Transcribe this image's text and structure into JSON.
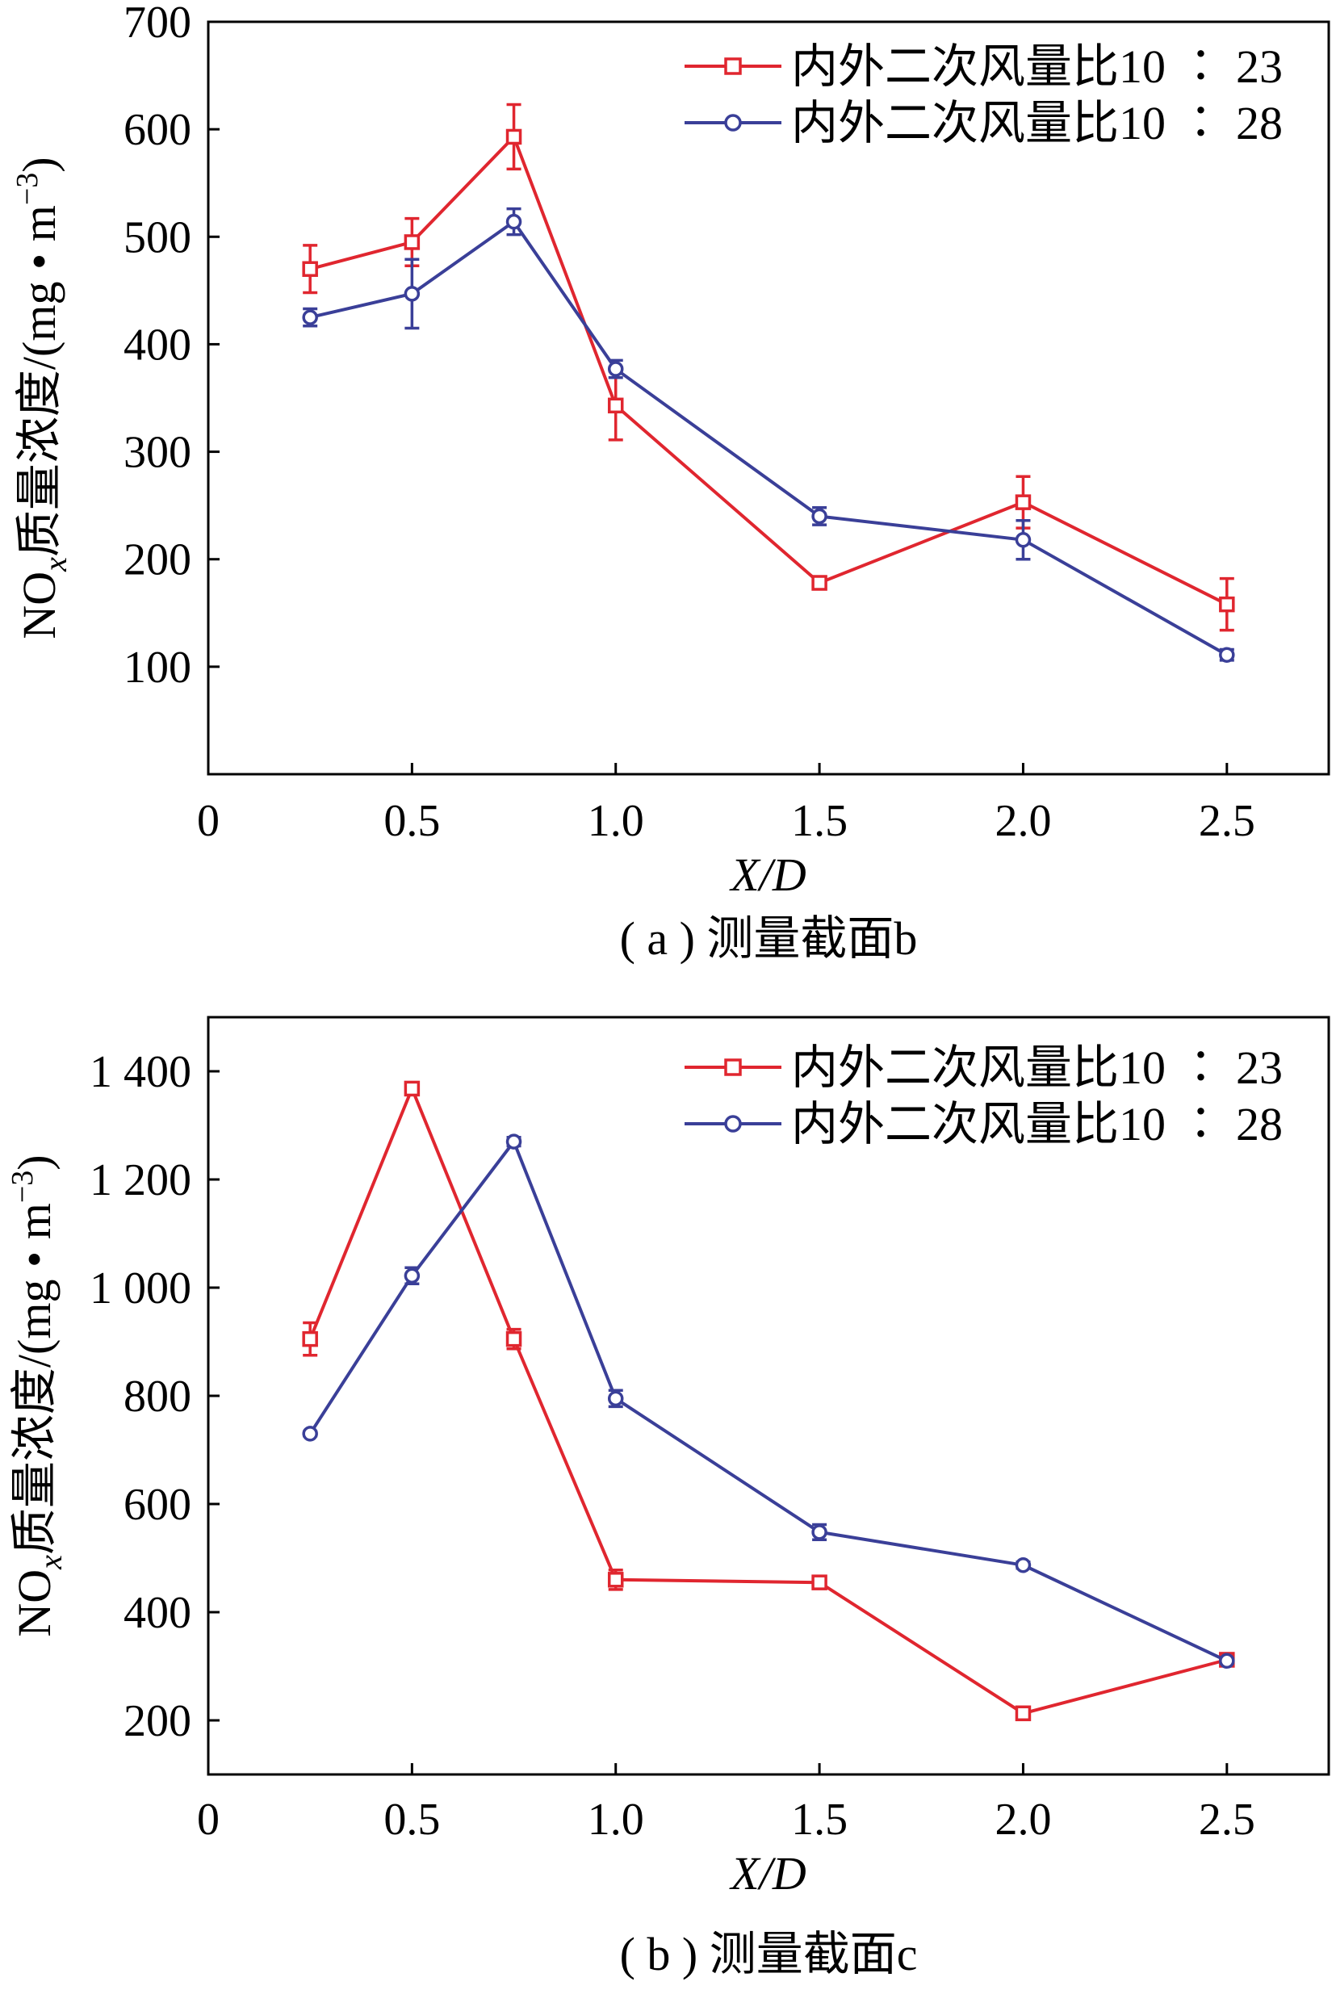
{
  "chart_data": [
    {
      "type": "line",
      "caption": "( a ) 测量截面b",
      "xlabel": "X/D",
      "ylabel_main": "NO",
      "ylabel_sub": "x",
      "ylabel_rest": "质量浓度/(mg • m",
      "ylabel_sup": "−3",
      "ylabel_close": ")",
      "xlim": [
        0,
        2.75
      ],
      "ylim": [
        0,
        700
      ],
      "x_ticks": [
        0,
        0.5,
        1.0,
        1.5,
        2.0,
        2.5
      ],
      "x_tick_labels": [
        "0",
        "0.5",
        "1.0",
        "1.5",
        "2.0",
        "2.5"
      ],
      "y_ticks": [
        100,
        200,
        300,
        400,
        500,
        600,
        700
      ],
      "y_tick_labels": [
        "100",
        "200",
        "300",
        "400",
        "500",
        "600",
        "700"
      ],
      "legend_position": "top-right",
      "x": [
        0.25,
        0.5,
        0.75,
        1.0,
        1.5,
        2.0,
        2.5
      ],
      "series": [
        {
          "name": "内外二次风量比10 ∶ 23",
          "color": "#e0262f",
          "marker": "square",
          "values": [
            470,
            495,
            593,
            343,
            178,
            253,
            158
          ],
          "errors": [
            22,
            22,
            30,
            32,
            5,
            24,
            24
          ]
        },
        {
          "name": "内外二次风量比10 ∶ 28",
          "color": "#3a3f98",
          "marker": "circle",
          "values": [
            425,
            447,
            514,
            377,
            240,
            218,
            111
          ],
          "errors": [
            8,
            32,
            12,
            8,
            8,
            18,
            5
          ]
        }
      ]
    },
    {
      "type": "line",
      "caption": "( b ) 测量截面c",
      "xlabel": "X/D",
      "ylabel_main": "NO",
      "ylabel_sub": "x",
      "ylabel_rest": "质量浓度/(mg • m",
      "ylabel_sup": "−3",
      "ylabel_close": ")",
      "xlim": [
        0,
        2.75
      ],
      "ylim": [
        100,
        1500
      ],
      "x_ticks": [
        0,
        0.5,
        1.0,
        1.5,
        2.0,
        2.5
      ],
      "x_tick_labels": [
        "0",
        "0.5",
        "1.0",
        "1.5",
        "2.0",
        "2.5"
      ],
      "y_ticks": [
        200,
        400,
        600,
        800,
        1000,
        1200,
        1400
      ],
      "y_tick_labels": [
        "200",
        "400",
        "600",
        "800",
        "1 000",
        "1 200",
        "1 400"
      ],
      "legend_position": "top-right",
      "x": [
        0.25,
        0.5,
        0.75,
        1.0,
        1.5,
        2.0,
        2.5
      ],
      "series": [
        {
          "name": "内外二次风量比10 ∶ 23",
          "color": "#e0262f",
          "marker": "square",
          "values": [
            905,
            1368,
            905,
            460,
            455,
            213,
            312
          ],
          "errors": [
            30,
            6,
            18,
            18,
            5,
            6,
            4
          ]
        },
        {
          "name": "内外二次风量比10 ∶ 28",
          "color": "#3a3f98",
          "marker": "circle",
          "values": [
            730,
            1022,
            1270,
            795,
            548,
            487,
            310
          ],
          "errors": [
            4,
            15,
            8,
            15,
            14,
            6,
            4
          ]
        }
      ]
    }
  ]
}
